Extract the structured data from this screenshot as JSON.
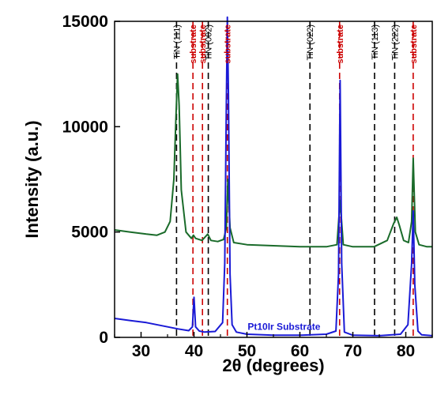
{
  "chart_data": {
    "type": "line",
    "title": "",
    "xlabel": "2θ (degrees)",
    "ylabel": "Intensity (a.u.)",
    "xlim": [
      25,
      85
    ],
    "ylim": [
      0,
      15000
    ],
    "xticks": [
      30,
      40,
      50,
      60,
      70,
      80
    ],
    "yticks": [
      0,
      5000,
      10000,
      15000
    ],
    "grid": false,
    "legend": "inline-bottom-center",
    "series": [
      {
        "name": "",
        "color": "#1a6b2a",
        "x": [
          25,
          28,
          31,
          33,
          34.5,
          35.5,
          36.2,
          36.6,
          36.9,
          37.2,
          37.6,
          38.5,
          39.5,
          39.9,
          40.3,
          41.5,
          42.6,
          43.2,
          44.5,
          45.6,
          46.1,
          46.4,
          46.8,
          47.5,
          50,
          55,
          60,
          65,
          67,
          67.6,
          68.2,
          70,
          74,
          76.5,
          77.7,
          78.3,
          78.8,
          79.6,
          80.5,
          81.1,
          81.4,
          81.8,
          82.5,
          84,
          85
        ],
        "y": [
          5100,
          5000,
          4900,
          4850,
          5000,
          5500,
          7500,
          10500,
          12500,
          11000,
          7000,
          5000,
          4700,
          4850,
          4700,
          4600,
          4900,
          4600,
          4550,
          4650,
          5200,
          7500,
          5200,
          4500,
          4400,
          4350,
          4300,
          4300,
          4400,
          6500,
          4400,
          4300,
          4300,
          4600,
          5400,
          5700,
          5300,
          4600,
          4500,
          5500,
          8500,
          5000,
          4400,
          4300,
          4300
        ]
      },
      {
        "name": "Pt10Ir Substrate",
        "color": "#1a1ad6",
        "x": [
          25,
          28,
          31,
          34,
          37,
          39,
          39.7,
          40,
          40.3,
          41,
          42,
          44,
          45.4,
          45.8,
          46.1,
          46.3,
          46.5,
          46.8,
          47.2,
          48,
          50,
          55,
          60,
          65,
          66.8,
          67.3,
          67.6,
          67.9,
          68.4,
          70,
          75,
          79,
          80.4,
          81.1,
          81.4,
          81.7,
          82.3,
          83,
          85
        ],
        "y": [
          900,
          800,
          700,
          550,
          400,
          320,
          500,
          1900,
          500,
          300,
          250,
          280,
          700,
          3500,
          11000,
          15500,
          11500,
          3000,
          600,
          250,
          150,
          100,
          100,
          150,
          300,
          3000,
          12200,
          3500,
          250,
          100,
          80,
          150,
          600,
          3500,
          6000,
          2500,
          300,
          120,
          80
        ]
      }
    ],
    "reference_lines": [
      {
        "x": 36.7,
        "label": "TiN (111)",
        "color": "#000000"
      },
      {
        "x": 39.8,
        "label": "substrate",
        "color": "#cc0000"
      },
      {
        "x": 41.6,
        "label": "substrate",
        "color": "#cc0000"
      },
      {
        "x": 42.7,
        "label": "TiN (002)",
        "color": "#000000"
      },
      {
        "x": 46.3,
        "label": "substrate",
        "color": "#cc0000"
      },
      {
        "x": 61.9,
        "label": "TiN (022)",
        "color": "#000000"
      },
      {
        "x": 67.5,
        "label": "substrate",
        "color": "#cc0000"
      },
      {
        "x": 74.1,
        "label": "TiN (113)",
        "color": "#000000"
      },
      {
        "x": 77.9,
        "label": "TiN (222)",
        "color": "#000000"
      },
      {
        "x": 81.4,
        "label": "substrate",
        "color": "#cc0000"
      }
    ],
    "series_labels": [
      {
        "text": "Pt10Ir Substrate",
        "x": 57,
        "y": 350
      }
    ]
  }
}
